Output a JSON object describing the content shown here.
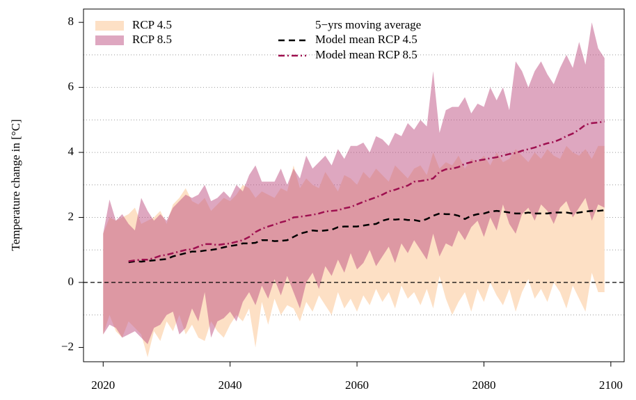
{
  "chart_data": {
    "type": "band_line",
    "y_label": "Temperature change in [°C]",
    "legend_title": "5−yrs moving average",
    "x": [
      2020,
      2021,
      2022,
      2023,
      2024,
      2025,
      2026,
      2027,
      2028,
      2029,
      2030,
      2031,
      2032,
      2033,
      2034,
      2035,
      2036,
      2037,
      2038,
      2039,
      2040,
      2041,
      2042,
      2043,
      2044,
      2045,
      2046,
      2047,
      2048,
      2049,
      2050,
      2051,
      2052,
      2053,
      2054,
      2055,
      2056,
      2057,
      2058,
      2059,
      2060,
      2061,
      2062,
      2063,
      2064,
      2065,
      2066,
      2067,
      2068,
      2069,
      2070,
      2071,
      2072,
      2073,
      2074,
      2075,
      2076,
      2077,
      2078,
      2079,
      2080,
      2081,
      2082,
      2083,
      2084,
      2085,
      2086,
      2087,
      2088,
      2089,
      2090,
      2091,
      2092,
      2093,
      2094,
      2095,
      2096,
      2097,
      2098,
      2099
    ],
    "xlim": [
      2016.9,
      2102.1
    ],
    "xticks": [
      2020,
      2040,
      2060,
      2080,
      2100
    ],
    "ylim": [
      -2.44,
      8.41
    ],
    "yticks": [
      {
        "value": -2,
        "label": "−2"
      },
      0,
      2,
      4,
      6,
      8
    ],
    "grid_y": [
      -1,
      1,
      2,
      3,
      4,
      5,
      6,
      7
    ],
    "zero_line": 0,
    "series": [
      {
        "name": "RCP 4.5",
        "kind": "band",
        "color": "#fde0c5",
        "upper": [
          1.5,
          2.0,
          1.9,
          2.0,
          2.1,
          2.3,
          1.8,
          1.9,
          2.0,
          2.2,
          1.8,
          2.4,
          2.6,
          2.9,
          2.5,
          2.4,
          2.6,
          2.2,
          2.4,
          2.6,
          2.5,
          2.7,
          3.0,
          2.9,
          2.6,
          2.8,
          2.7,
          2.6,
          2.9,
          2.8,
          3.6,
          2.9,
          3.2,
          3.0,
          2.9,
          3.4,
          3.1,
          2.8,
          3.3,
          3.2,
          3.0,
          3.4,
          3.2,
          3.5,
          3.3,
          3.1,
          3.6,
          3.4,
          3.2,
          3.5,
          3.6,
          3.3,
          4.0,
          3.5,
          3.7,
          3.6,
          3.9,
          3.5,
          3.8,
          3.7,
          3.9,
          3.6,
          4.0,
          3.7,
          3.8,
          4.1,
          3.9,
          3.7,
          4.0,
          3.8,
          4.1,
          3.9,
          3.8,
          4.2,
          4.0,
          3.9,
          4.1,
          3.8,
          4.2,
          4.2
        ],
        "lower": [
          -1.6,
          -1.0,
          -1.5,
          -1.7,
          -1.2,
          -1.4,
          -1.6,
          -2.3,
          -1.5,
          -1.8,
          -1.2,
          -1.5,
          -1.0,
          -1.6,
          -1.3,
          -1.7,
          -1.8,
          -1.2,
          -1.5,
          -1.7,
          -1.3,
          -1.0,
          -1.2,
          -0.8,
          -2.0,
          -0.6,
          -1.3,
          -0.5,
          -1.0,
          -0.7,
          -0.8,
          -1.2,
          -0.6,
          -0.9,
          -0.4,
          -0.7,
          -1.0,
          -0.3,
          -0.8,
          -0.5,
          -0.9,
          -0.4,
          -0.7,
          -0.2,
          -0.6,
          -0.3,
          -0.8,
          -0.1,
          -0.5,
          -0.3,
          -0.7,
          -0.2,
          -0.8,
          0.2,
          -0.5,
          -1.0,
          -0.6,
          -0.3,
          -0.9,
          -0.2,
          -0.6,
          0.0,
          -0.4,
          -0.7,
          -0.2,
          -0.9,
          -0.3,
          0.1,
          -0.5,
          -0.2,
          -0.6,
          0.0,
          -0.3,
          -0.8,
          -0.1,
          -0.5,
          -0.9,
          0.3,
          -0.3,
          -0.3
        ]
      },
      {
        "name": "RCP 8.5",
        "kind": "band",
        "color": "rgba(190,80,130,0.5)",
        "upper": [
          1.5,
          2.55,
          1.9,
          2.1,
          1.8,
          1.6,
          2.6,
          2.2,
          1.9,
          2.1,
          1.9,
          2.3,
          2.5,
          2.7,
          2.6,
          2.7,
          3.0,
          2.5,
          2.6,
          2.8,
          2.6,
          3.0,
          2.8,
          3.3,
          3.6,
          3.1,
          3.1,
          3.1,
          3.5,
          3.0,
          3.5,
          3.2,
          3.9,
          3.5,
          3.7,
          3.9,
          3.6,
          4.1,
          3.8,
          4.2,
          4.2,
          4.3,
          4.0,
          4.5,
          4.4,
          4.2,
          4.6,
          4.5,
          4.9,
          4.7,
          5.0,
          4.8,
          6.5,
          4.6,
          5.3,
          5.4,
          5.4,
          5.7,
          5.2,
          5.5,
          5.4,
          6.0,
          5.6,
          6.0,
          5.3,
          6.8,
          6.5,
          6.0,
          6.5,
          6.8,
          6.4,
          6.1,
          6.6,
          7.0,
          6.6,
          7.4,
          6.7,
          8.0,
          7.2,
          6.9
        ],
        "lower": [
          -1.6,
          -1.3,
          -1.4,
          -1.7,
          -1.6,
          -1.5,
          -1.7,
          -1.9,
          -1.4,
          -1.3,
          -1.0,
          -0.9,
          -1.6,
          -1.4,
          -0.8,
          -1.2,
          -0.3,
          -1.7,
          -1.2,
          -1.1,
          -0.9,
          -1.2,
          -0.6,
          -0.3,
          -0.7,
          -0.1,
          -0.5,
          0.1,
          -0.4,
          0.2,
          -0.3,
          -0.8,
          0.0,
          0.3,
          -0.2,
          0.5,
          0.2,
          0.7,
          0.3,
          0.9,
          0.4,
          0.6,
          1.0,
          0.5,
          0.8,
          1.1,
          0.6,
          1.2,
          0.9,
          1.3,
          1.0,
          0.7,
          1.5,
          0.8,
          1.2,
          1.1,
          1.6,
          1.3,
          1.7,
          1.9,
          1.4,
          2.0,
          1.6,
          2.4,
          1.8,
          1.5,
          2.1,
          2.3,
          1.9,
          2.4,
          2.2,
          1.8,
          2.3,
          2.5,
          2.0,
          2.3,
          2.6,
          1.9,
          2.4,
          2.3
        ]
      },
      {
        "name": "Model mean RCP 4.5",
        "kind": "line",
        "color": "#000000",
        "dash": "9 6",
        "values": [
          null,
          null,
          null,
          null,
          0.62,
          0.65,
          0.64,
          0.66,
          0.68,
          0.7,
          0.72,
          0.8,
          0.85,
          0.9,
          0.95,
          0.95,
          0.98,
          1.0,
          1.03,
          1.08,
          1.12,
          1.15,
          1.2,
          1.2,
          1.22,
          1.3,
          1.3,
          1.27,
          1.28,
          1.3,
          1.4,
          1.5,
          1.55,
          1.6,
          1.58,
          1.6,
          1.62,
          1.7,
          1.72,
          1.72,
          1.72,
          1.75,
          1.78,
          1.8,
          1.9,
          1.95,
          1.93,
          1.95,
          1.92,
          1.92,
          1.88,
          1.95,
          2.05,
          2.12,
          2.1,
          2.1,
          2.05,
          1.95,
          2.05,
          2.1,
          2.12,
          2.18,
          2.2,
          2.18,
          2.15,
          2.12,
          2.12,
          2.15,
          2.12,
          2.12,
          2.12,
          2.15,
          2.15,
          2.15,
          2.12,
          2.15,
          2.18,
          2.2,
          2.2,
          2.22
        ]
      },
      {
        "name": "Model mean RCP 8.5",
        "kind": "line",
        "color": "#9e0f4f",
        "dash": "9 4 2 4",
        "values": [
          null,
          null,
          null,
          null,
          0.65,
          0.68,
          0.7,
          0.7,
          0.75,
          0.82,
          0.85,
          0.9,
          0.95,
          1.0,
          1.02,
          1.1,
          1.18,
          1.18,
          1.15,
          1.18,
          1.2,
          1.25,
          1.3,
          1.4,
          1.55,
          1.65,
          1.72,
          1.78,
          1.85,
          1.9,
          2.0,
          2.02,
          2.05,
          2.08,
          2.12,
          2.18,
          2.2,
          2.22,
          2.28,
          2.32,
          2.4,
          2.48,
          2.55,
          2.62,
          2.7,
          2.8,
          2.85,
          2.92,
          2.98,
          3.1,
          3.12,
          3.15,
          3.2,
          3.4,
          3.48,
          3.5,
          3.55,
          3.65,
          3.7,
          3.75,
          3.78,
          3.82,
          3.85,
          3.9,
          3.95,
          3.98,
          4.05,
          4.1,
          4.15,
          4.22,
          4.28,
          4.32,
          4.4,
          4.5,
          4.58,
          4.7,
          4.85,
          4.9,
          4.92,
          4.95
        ]
      }
    ]
  }
}
